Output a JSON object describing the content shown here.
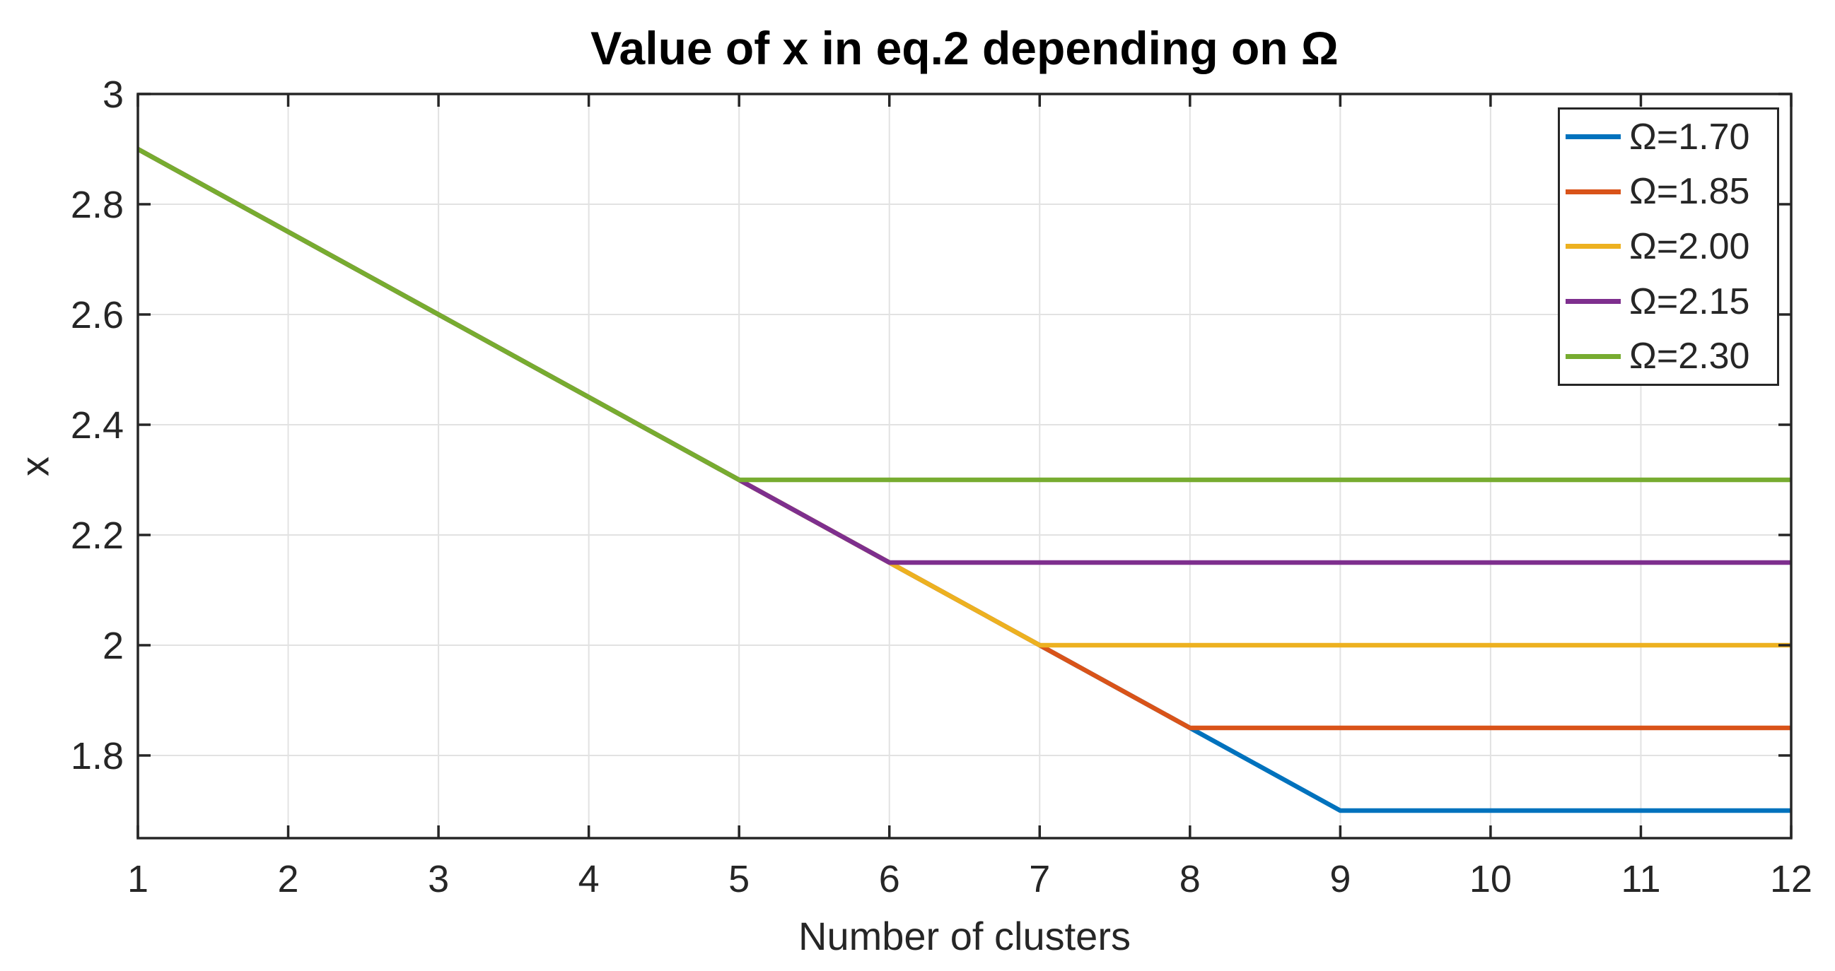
{
  "figure": {
    "title": "Value of x in eq.2 depending on Ω",
    "xlabel": "Number of clusters",
    "ylabel": "x"
  },
  "chart_data": {
    "type": "line",
    "title": "Value of x in eq.2 depending on Ω",
    "xlabel": "Number of clusters",
    "ylabel": "x",
    "x": [
      1,
      2,
      3,
      4,
      5,
      6,
      7,
      8,
      9,
      10,
      11,
      12
    ],
    "series": [
      {
        "name": "Ω=1.70",
        "omega": 1.7,
        "color": "#0072BD",
        "values": [
          2.9,
          2.75,
          2.6,
          2.45,
          2.3,
          2.15,
          2.0,
          1.85,
          1.7,
          1.7,
          1.7,
          1.7
        ]
      },
      {
        "name": "Ω=1.85",
        "omega": 1.85,
        "color": "#D95319",
        "values": [
          2.9,
          2.75,
          2.6,
          2.45,
          2.3,
          2.15,
          2.0,
          1.85,
          1.85,
          1.85,
          1.85,
          1.85
        ]
      },
      {
        "name": "Ω=2.00",
        "omega": 2.0,
        "color": "#EDB120",
        "values": [
          2.9,
          2.75,
          2.6,
          2.45,
          2.3,
          2.15,
          2.0,
          2.0,
          2.0,
          2.0,
          2.0,
          2.0
        ]
      },
      {
        "name": "Ω=2.15",
        "omega": 2.15,
        "color": "#7E2F8E",
        "values": [
          2.9,
          2.75,
          2.6,
          2.45,
          2.3,
          2.15,
          2.15,
          2.15,
          2.15,
          2.15,
          2.15,
          2.15
        ]
      },
      {
        "name": "Ω=2.30",
        "omega": 2.3,
        "color": "#77AC30",
        "values": [
          2.9,
          2.75,
          2.6,
          2.45,
          2.3,
          2.3,
          2.3,
          2.3,
          2.3,
          2.3,
          2.3,
          2.3
        ]
      }
    ],
    "xlim": [
      1,
      12
    ],
    "ylim": [
      1.65,
      3.0
    ],
    "xticks": [
      1,
      2,
      3,
      4,
      5,
      6,
      7,
      8,
      9,
      10,
      11,
      12
    ],
    "xtick_labels": [
      "1",
      "2",
      "3",
      "4",
      "5",
      "6",
      "7",
      "8",
      "9",
      "10",
      "11",
      "12"
    ],
    "yticks": [
      1.8,
      2.0,
      2.2,
      2.4,
      2.6,
      2.8,
      3.0
    ],
    "ytick_labels": [
      "1.8",
      "2",
      "2.2",
      "2.4",
      "2.6",
      "2.8",
      "3"
    ],
    "grid": true,
    "legend_position": "top-right",
    "colors": {
      "axis": "#262626",
      "grid": "#e2e2e2",
      "background": "#ffffff"
    }
  }
}
